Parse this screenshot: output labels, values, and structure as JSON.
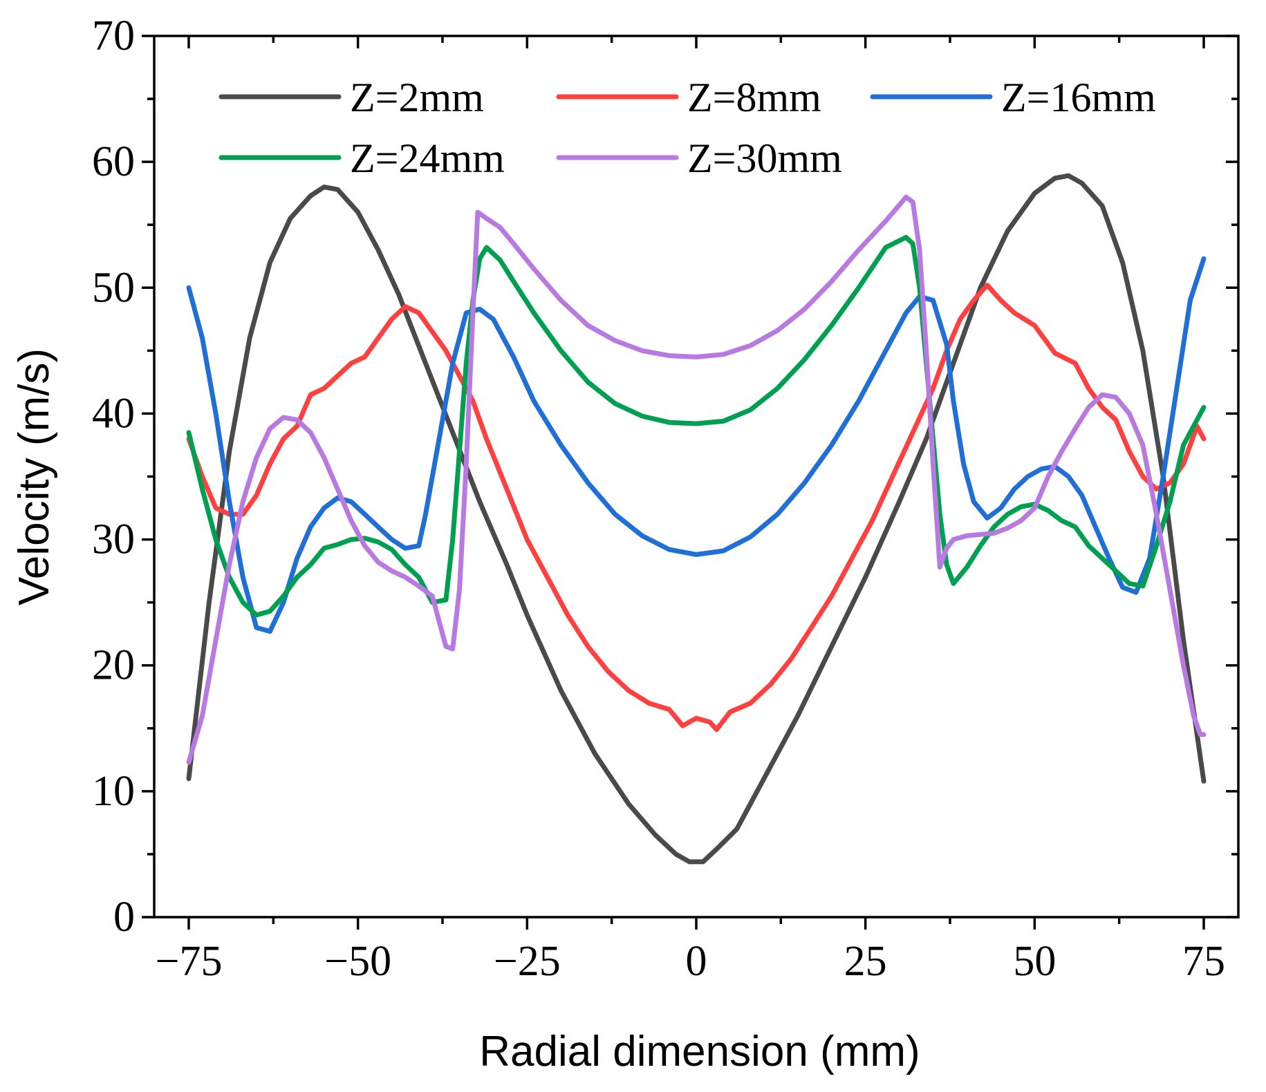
{
  "chart_data": {
    "type": "line",
    "title": "",
    "xlabel": "Radial dimension (mm)",
    "ylabel": "Velocity (m/s)",
    "xlim": [
      -75,
      75
    ],
    "ylim": [
      0,
      70
    ],
    "xticks": [
      "−75",
      "−50",
      "−25",
      "0",
      "25",
      "50",
      "75"
    ],
    "xtick_values": [
      -75,
      -50,
      -25,
      0,
      25,
      50,
      75
    ],
    "yticks": [
      "0",
      "10",
      "20",
      "30",
      "40",
      "50",
      "60",
      "70"
    ],
    "ytick_values": [
      0,
      10,
      20,
      30,
      40,
      50,
      60,
      70
    ],
    "legend_position": "top",
    "series": [
      {
        "name": "Z=2mm",
        "color": "#4a4a4a",
        "points": [
          [
            -75,
            11
          ],
          [
            -72,
            25
          ],
          [
            -69,
            37
          ],
          [
            -66,
            46
          ],
          [
            -63,
            52
          ],
          [
            -60,
            55.5
          ],
          [
            -57,
            57.3
          ],
          [
            -55,
            58
          ],
          [
            -53,
            57.8
          ],
          [
            -50,
            56
          ],
          [
            -47,
            53
          ],
          [
            -44,
            49.5
          ],
          [
            -40,
            44
          ],
          [
            -36,
            38.5
          ],
          [
            -32,
            33
          ],
          [
            -28,
            28
          ],
          [
            -25,
            24
          ],
          [
            -20,
            18
          ],
          [
            -15,
            13
          ],
          [
            -10,
            9
          ],
          [
            -6,
            6.5
          ],
          [
            -3,
            5
          ],
          [
            -1,
            4.4
          ],
          [
            1,
            4.4
          ],
          [
            3,
            5.4
          ],
          [
            6,
            7
          ],
          [
            10,
            11
          ],
          [
            15,
            16
          ],
          [
            20,
            21.5
          ],
          [
            25,
            27
          ],
          [
            30,
            33
          ],
          [
            34,
            38
          ],
          [
            38,
            44
          ],
          [
            42,
            50
          ],
          [
            46,
            54.5
          ],
          [
            50,
            57.5
          ],
          [
            53,
            58.7
          ],
          [
            55,
            58.9
          ],
          [
            57,
            58.3
          ],
          [
            60,
            56.5
          ],
          [
            63,
            52
          ],
          [
            66,
            45
          ],
          [
            69,
            35
          ],
          [
            72,
            22
          ],
          [
            75,
            10.8
          ]
        ]
      },
      {
        "name": "Z=8mm",
        "color": "#ff4040",
        "points": [
          [
            -75,
            38
          ],
          [
            -73,
            35
          ],
          [
            -71,
            32.5
          ],
          [
            -69,
            32
          ],
          [
            -67,
            32
          ],
          [
            -65,
            33.5
          ],
          [
            -63,
            36
          ],
          [
            -61,
            38
          ],
          [
            -59,
            39
          ],
          [
            -57,
            41.5
          ],
          [
            -55,
            42
          ],
          [
            -53,
            43
          ],
          [
            -51,
            44
          ],
          [
            -49,
            44.5
          ],
          [
            -47,
            46
          ],
          [
            -45,
            47.5
          ],
          [
            -43,
            48.5
          ],
          [
            -41,
            48
          ],
          [
            -39,
            46.5
          ],
          [
            -37,
            45
          ],
          [
            -35,
            43
          ],
          [
            -33,
            41
          ],
          [
            -31,
            38
          ],
          [
            -28,
            34
          ],
          [
            -25,
            30
          ],
          [
            -22,
            27
          ],
          [
            -19,
            24
          ],
          [
            -16,
            21.5
          ],
          [
            -13,
            19.5
          ],
          [
            -10,
            18
          ],
          [
            -7,
            17
          ],
          [
            -4,
            16.5
          ],
          [
            -2,
            15.2
          ],
          [
            0,
            15.8
          ],
          [
            2,
            15.5
          ],
          [
            3,
            14.9
          ],
          [
            5,
            16.3
          ],
          [
            8,
            17
          ],
          [
            11,
            18.5
          ],
          [
            14,
            20.5
          ],
          [
            17,
            23
          ],
          [
            20,
            25.5
          ],
          [
            23,
            28.5
          ],
          [
            26,
            31.5
          ],
          [
            29,
            35
          ],
          [
            32,
            38.5
          ],
          [
            35,
            42
          ],
          [
            37,
            45
          ],
          [
            39,
            47.5
          ],
          [
            41,
            49
          ],
          [
            43,
            50.2
          ],
          [
            45,
            49
          ],
          [
            47,
            48
          ],
          [
            50,
            47
          ],
          [
            53,
            44.8
          ],
          [
            56,
            44
          ],
          [
            58,
            42
          ],
          [
            60,
            40.5
          ],
          [
            62,
            39.5
          ],
          [
            64,
            37
          ],
          [
            66,
            35
          ],
          [
            68,
            34
          ],
          [
            70,
            34.5
          ],
          [
            72,
            36
          ],
          [
            74,
            39
          ],
          [
            75,
            38
          ]
        ]
      },
      {
        "name": "Z=16mm",
        "color": "#1f6fd6",
        "points": [
          [
            -75,
            50
          ],
          [
            -73,
            46
          ],
          [
            -71,
            40
          ],
          [
            -69,
            33
          ],
          [
            -67,
            27
          ],
          [
            -65,
            23
          ],
          [
            -63,
            22.7
          ],
          [
            -61,
            25
          ],
          [
            -59,
            28.5
          ],
          [
            -57,
            31
          ],
          [
            -55,
            32.5
          ],
          [
            -53,
            33.3
          ],
          [
            -51,
            33
          ],
          [
            -49,
            32
          ],
          [
            -47,
            31
          ],
          [
            -45,
            30
          ],
          [
            -43,
            29.3
          ],
          [
            -41,
            29.5
          ],
          [
            -40,
            32
          ],
          [
            -38,
            38
          ],
          [
            -36,
            44
          ],
          [
            -34,
            48
          ],
          [
            -32,
            48.3
          ],
          [
            -30,
            47.5
          ],
          [
            -27,
            44.5
          ],
          [
            -24,
            41
          ],
          [
            -20,
            37.5
          ],
          [
            -16,
            34.5
          ],
          [
            -12,
            32
          ],
          [
            -8,
            30.3
          ],
          [
            -4,
            29.2
          ],
          [
            0,
            28.8
          ],
          [
            4,
            29.1
          ],
          [
            8,
            30.2
          ],
          [
            12,
            32
          ],
          [
            16,
            34.5
          ],
          [
            20,
            37.5
          ],
          [
            24,
            41
          ],
          [
            28,
            45
          ],
          [
            31,
            48
          ],
          [
            33,
            49.3
          ],
          [
            35,
            49
          ],
          [
            37,
            45.5
          ],
          [
            38,
            41
          ],
          [
            39.5,
            36
          ],
          [
            41,
            33
          ],
          [
            43,
            31.7
          ],
          [
            45,
            32.5
          ],
          [
            47,
            34
          ],
          [
            49,
            35
          ],
          [
            51,
            35.6
          ],
          [
            53,
            35.8
          ],
          [
            55,
            35
          ],
          [
            57,
            33.5
          ],
          [
            59,
            31
          ],
          [
            61,
            28.5
          ],
          [
            63,
            26.2
          ],
          [
            65,
            25.8
          ],
          [
            67,
            28.5
          ],
          [
            69,
            35
          ],
          [
            71,
            42
          ],
          [
            73,
            49
          ],
          [
            75,
            52.3
          ]
        ]
      },
      {
        "name": "Z=24mm",
        "color": "#00a050",
        "points": [
          [
            -75,
            38.5
          ],
          [
            -73,
            34
          ],
          [
            -71,
            30
          ],
          [
            -69,
            27
          ],
          [
            -67,
            25
          ],
          [
            -65,
            24
          ],
          [
            -63,
            24.3
          ],
          [
            -61,
            25.5
          ],
          [
            -59,
            27
          ],
          [
            -57,
            28
          ],
          [
            -55,
            29.3
          ],
          [
            -53,
            29.6
          ],
          [
            -51,
            30
          ],
          [
            -49,
            30.1
          ],
          [
            -47,
            29.8
          ],
          [
            -45,
            29.2
          ],
          [
            -43,
            28
          ],
          [
            -41,
            27
          ],
          [
            -40,
            26
          ],
          [
            -39,
            25
          ],
          [
            -37,
            25.2
          ],
          [
            -36,
            30
          ],
          [
            -35,
            37
          ],
          [
            -34,
            44
          ],
          [
            -33,
            49
          ],
          [
            -32,
            52.3
          ],
          [
            -31,
            53.2
          ],
          [
            -29,
            52.2
          ],
          [
            -27,
            50.5
          ],
          [
            -24,
            48
          ],
          [
            -20,
            45
          ],
          [
            -16,
            42.5
          ],
          [
            -12,
            40.8
          ],
          [
            -8,
            39.8
          ],
          [
            -4,
            39.3
          ],
          [
            0,
            39.2
          ],
          [
            4,
            39.4
          ],
          [
            8,
            40.3
          ],
          [
            12,
            42
          ],
          [
            16,
            44.3
          ],
          [
            20,
            47
          ],
          [
            24,
            50
          ],
          [
            28,
            53.2
          ],
          [
            31,
            54
          ],
          [
            32,
            53.5
          ],
          [
            33,
            50
          ],
          [
            34,
            44
          ],
          [
            35,
            38
          ],
          [
            36,
            32
          ],
          [
            37,
            28
          ],
          [
            38,
            26.5
          ],
          [
            40,
            27.8
          ],
          [
            42,
            29.5
          ],
          [
            44,
            31
          ],
          [
            46,
            32
          ],
          [
            48,
            32.6
          ],
          [
            50,
            32.8
          ],
          [
            52,
            32.3
          ],
          [
            54,
            31.5
          ],
          [
            56,
            31
          ],
          [
            58,
            29.5
          ],
          [
            60,
            28.5
          ],
          [
            62,
            27.5
          ],
          [
            64,
            26.5
          ],
          [
            66,
            26.3
          ],
          [
            68,
            29.5
          ],
          [
            70,
            33
          ],
          [
            72,
            37.5
          ],
          [
            74,
            39.5
          ],
          [
            75,
            40.5
          ]
        ]
      },
      {
        "name": "Z=30mm",
        "color": "#b87ae0",
        "points": [
          [
            -75,
            12.3
          ],
          [
            -73,
            16
          ],
          [
            -71,
            22
          ],
          [
            -69,
            28
          ],
          [
            -67,
            33
          ],
          [
            -65,
            36.5
          ],
          [
            -63,
            38.8
          ],
          [
            -61,
            39.7
          ],
          [
            -59,
            39.5
          ],
          [
            -57,
            38.5
          ],
          [
            -55,
            36.5
          ],
          [
            -53,
            34
          ],
          [
            -51,
            31.5
          ],
          [
            -49,
            29.5
          ],
          [
            -47,
            28.2
          ],
          [
            -45,
            27.5
          ],
          [
            -43,
            27
          ],
          [
            -41,
            26.3
          ],
          [
            -39,
            25.5
          ],
          [
            -38,
            23.5
          ],
          [
            -37,
            21.5
          ],
          [
            -36,
            21.3
          ],
          [
            -35,
            26
          ],
          [
            -34,
            36
          ],
          [
            -33,
            48
          ],
          [
            -32.3,
            56
          ],
          [
            -31,
            55.5
          ],
          [
            -29,
            54.8
          ],
          [
            -27,
            53.5
          ],
          [
            -24,
            51.5
          ],
          [
            -20,
            49
          ],
          [
            -16,
            47
          ],
          [
            -12,
            45.8
          ],
          [
            -8,
            45
          ],
          [
            -4,
            44.6
          ],
          [
            0,
            44.5
          ],
          [
            4,
            44.7
          ],
          [
            8,
            45.4
          ],
          [
            12,
            46.6
          ],
          [
            16,
            48.3
          ],
          [
            20,
            50.5
          ],
          [
            24,
            53
          ],
          [
            28,
            55.3
          ],
          [
            31,
            57.2
          ],
          [
            32,
            56.8
          ],
          [
            33,
            53
          ],
          [
            34,
            45
          ],
          [
            35,
            36
          ],
          [
            36,
            27.8
          ],
          [
            37,
            29.3
          ],
          [
            38,
            30
          ],
          [
            40,
            30.3
          ],
          [
            42,
            30.4
          ],
          [
            44,
            30.5
          ],
          [
            46,
            30.9
          ],
          [
            48,
            31.5
          ],
          [
            50,
            32.5
          ],
          [
            52,
            35
          ],
          [
            54,
            37
          ],
          [
            56,
            38.8
          ],
          [
            58,
            40.5
          ],
          [
            60,
            41.5
          ],
          [
            62,
            41.3
          ],
          [
            64,
            40
          ],
          [
            66,
            37.5
          ],
          [
            68,
            32
          ],
          [
            70,
            26
          ],
          [
            72,
            20
          ],
          [
            73.5,
            16
          ],
          [
            74.5,
            14.5
          ],
          [
            75,
            14.5
          ]
        ]
      }
    ]
  }
}
